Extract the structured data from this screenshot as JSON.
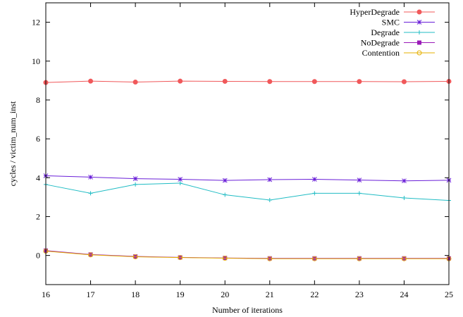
{
  "chart_data": {
    "type": "line",
    "title": "",
    "xlabel": "Number of iterations",
    "ylabel": "cycles / victim_num_inst",
    "xlim": [
      16,
      25
    ],
    "ylim": [
      -1.5,
      13
    ],
    "x": [
      16,
      17,
      18,
      19,
      20,
      21,
      22,
      23,
      24,
      25
    ],
    "x_ticks": [
      "16",
      "17",
      "18",
      "19",
      "20",
      "21",
      "22",
      "23",
      "24",
      "25"
    ],
    "y_ticks": [
      0,
      2,
      4,
      6,
      8,
      10,
      12
    ],
    "y_tick_labels": [
      "0",
      "2",
      "4",
      "6",
      "8",
      "10",
      "12"
    ],
    "grid": false,
    "legend_position": "top-right",
    "series": [
      {
        "name": "HyperDegrade",
        "color": "#f0585a",
        "marker": "circle-filled",
        "values": [
          8.9,
          8.97,
          8.92,
          8.97,
          8.96,
          8.95,
          8.95,
          8.95,
          8.94,
          8.96
        ]
      },
      {
        "name": "SMC",
        "color": "#6a1fd8",
        "marker": "star",
        "values": [
          4.1,
          4.03,
          3.95,
          3.92,
          3.86,
          3.9,
          3.92,
          3.88,
          3.84,
          3.87
        ]
      },
      {
        "name": "Degrade",
        "color": "#20bcc4",
        "marker": "plus",
        "values": [
          3.65,
          3.2,
          3.65,
          3.72,
          3.12,
          2.85,
          3.2,
          3.2,
          2.96,
          2.83
        ]
      },
      {
        "name": "NoDegrade",
        "color": "#9a1ab8",
        "marker": "square-filled",
        "values": [
          0.25,
          0.05,
          -0.05,
          -0.1,
          -0.13,
          -0.15,
          -0.15,
          -0.15,
          -0.15,
          -0.15
        ]
      },
      {
        "name": "Contention",
        "color": "#e6b000",
        "marker": "circle-open",
        "values": [
          0.22,
          0.03,
          -0.07,
          -0.11,
          -0.14,
          -0.17,
          -0.17,
          -0.17,
          -0.17,
          -0.17
        ]
      }
    ]
  }
}
